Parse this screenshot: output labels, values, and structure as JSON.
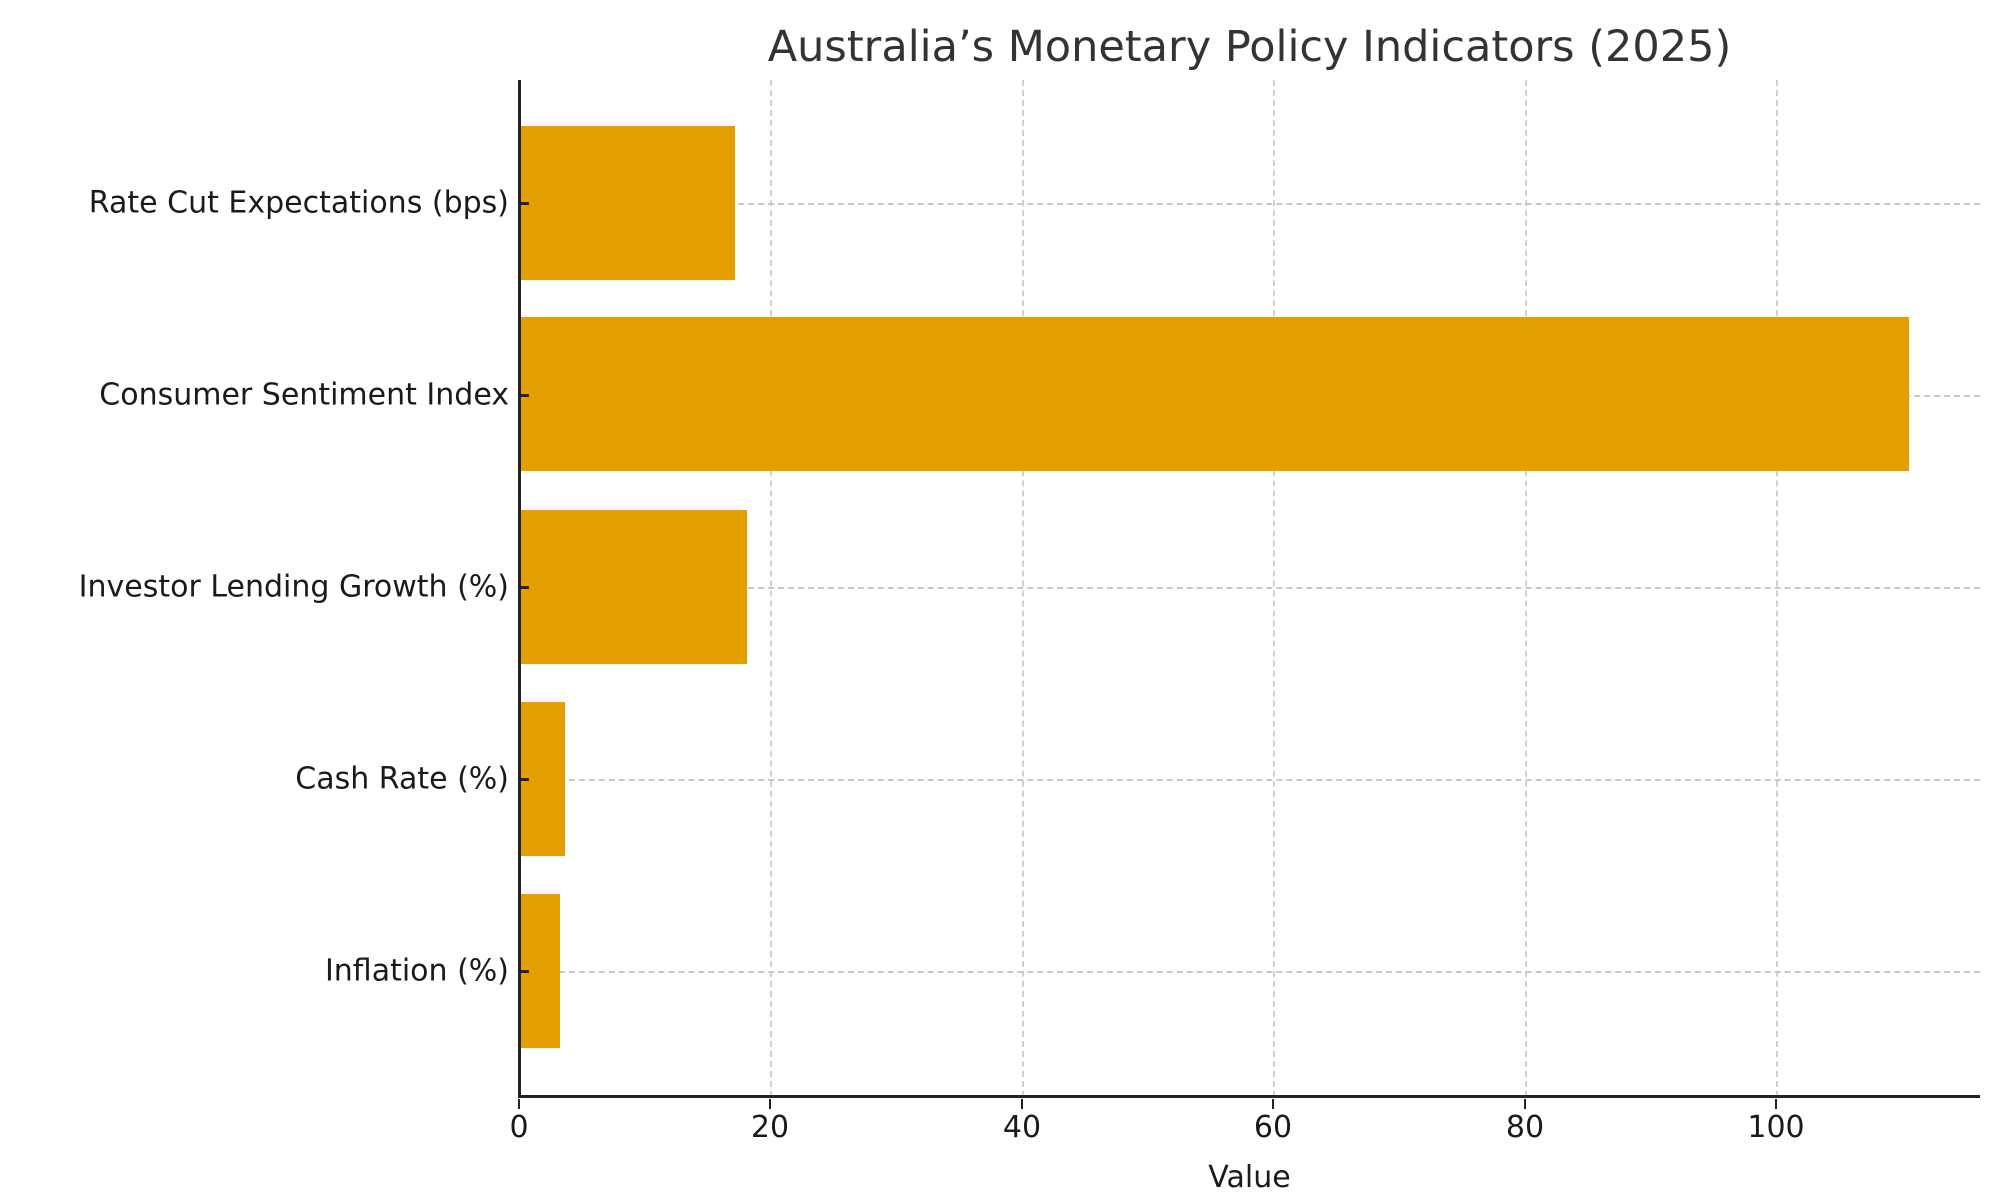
{
  "chart_data": {
    "type": "bar",
    "orientation": "horizontal",
    "title": "Australia’s Monetary Policy Indicators (2025)",
    "xlabel": "Value",
    "ylabel": "",
    "categories": [
      "Rate Cut Expectations (bps)",
      "Consumer Sentiment Index",
      "Investor Lending Growth (%)",
      "Cash Rate (%)",
      "Inflation (%)"
    ],
    "values": [
      17,
      110,
      18,
      3.6,
      3.2
    ],
    "xlim": [
      0,
      115.7
    ],
    "xticks": [
      "0",
      "20",
      "40",
      "60",
      "80",
      "100"
    ],
    "grid": true,
    "legend": null,
    "bar_color": "#E69F00"
  },
  "colors": {
    "bar": "#E69F00",
    "axis": "#222222",
    "grid": "#d0d0d0",
    "title": "#333333"
  }
}
